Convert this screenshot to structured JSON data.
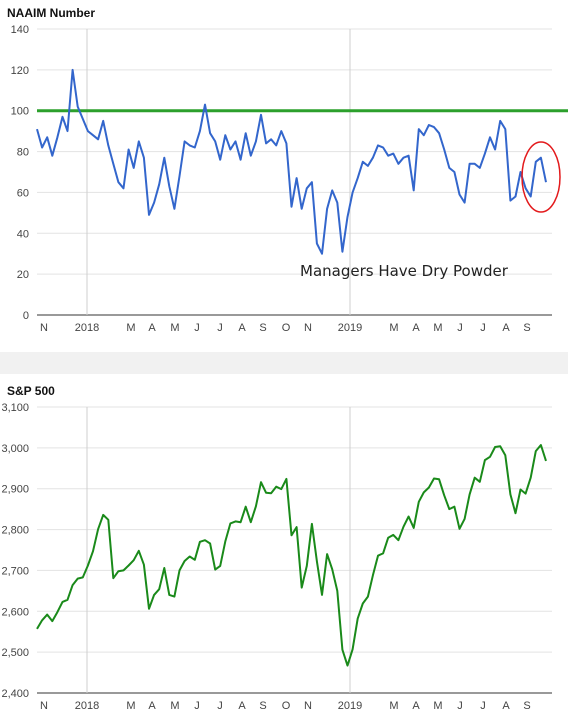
{
  "chart_data": [
    {
      "type": "line",
      "title": "NAAIM Number",
      "ylim": [
        0,
        140
      ],
      "y_ticks": [
        0,
        20,
        40,
        60,
        80,
        100,
        120,
        140
      ],
      "x_tick_labels": [
        "N",
        "2018",
        "M",
        "A",
        "M",
        "J",
        "J",
        "A",
        "S",
        "O",
        "N",
        "2019",
        "M",
        "A",
        "M",
        "J",
        "J",
        "A",
        "S"
      ],
      "series_color": "#3366cc",
      "reference_line": {
        "value": 100,
        "color": "#2ca02c"
      },
      "annotation": "Managers Have Dry Powder",
      "highlight_color": "#e31a1c",
      "values": [
        91,
        82,
        87,
        78,
        87,
        97,
        90,
        120,
        102,
        96,
        90,
        88,
        86,
        95,
        83,
        74,
        65,
        62,
        81,
        72,
        85,
        77,
        49,
        55,
        64,
        77,
        63,
        52,
        68,
        85,
        83,
        82,
        90,
        103,
        89,
        85,
        76,
        88,
        81,
        85,
        76,
        89,
        78,
        85,
        98,
        84,
        86,
        83,
        90,
        84,
        53,
        67,
        52,
        62,
        65,
        35,
        30,
        52,
        61,
        55,
        31,
        48,
        60,
        67,
        75,
        73,
        77,
        83,
        82,
        78,
        79,
        74,
        77,
        78,
        61,
        91,
        88,
        93,
        92,
        89,
        81,
        72,
        70,
        59,
        55,
        74,
        74,
        72,
        79,
        87,
        81,
        95,
        91,
        56,
        58,
        70,
        62,
        58,
        75,
        77,
        65
      ]
    },
    {
      "type": "line",
      "title": "S&P 500",
      "ylim": [
        2400,
        3100
      ],
      "y_ticks": [
        "2,400",
        "2,500",
        "2,600",
        "2,700",
        "2,800",
        "2,900",
        "3,000",
        "3,100"
      ],
      "x_tick_labels": [
        "N",
        "2018",
        "M",
        "A",
        "M",
        "J",
        "J",
        "A",
        "S",
        "O",
        "N",
        "2019",
        "M",
        "A",
        "M",
        "J",
        "J",
        "A",
        "S"
      ],
      "series_color": "#1a8a1a",
      "values": [
        2557,
        2578,
        2592,
        2576,
        2598,
        2623,
        2628,
        2664,
        2680,
        2683,
        2712,
        2747,
        2801,
        2836,
        2824,
        2681,
        2698,
        2700,
        2712,
        2725,
        2748,
        2714,
        2606,
        2640,
        2654,
        2706,
        2640,
        2636,
        2700,
        2723,
        2734,
        2726,
        2770,
        2774,
        2766,
        2702,
        2711,
        2771,
        2815,
        2820,
        2818,
        2856,
        2818,
        2857,
        2916,
        2890,
        2889,
        2905,
        2899,
        2924,
        2786,
        2806,
        2658,
        2711,
        2814,
        2722,
        2640,
        2740,
        2703,
        2650,
        2506,
        2467,
        2507,
        2582,
        2619,
        2636,
        2688,
        2736,
        2742,
        2780,
        2787,
        2774,
        2807,
        2832,
        2804,
        2868,
        2891,
        2903,
        2925,
        2923,
        2884,
        2850,
        2856,
        2802,
        2826,
        2886,
        2927,
        2917,
        2970,
        2978,
        3002,
        3004,
        2982,
        2886,
        2840,
        2898,
        2888,
        2927,
        2992,
        3007,
        2968
      ]
    }
  ]
}
